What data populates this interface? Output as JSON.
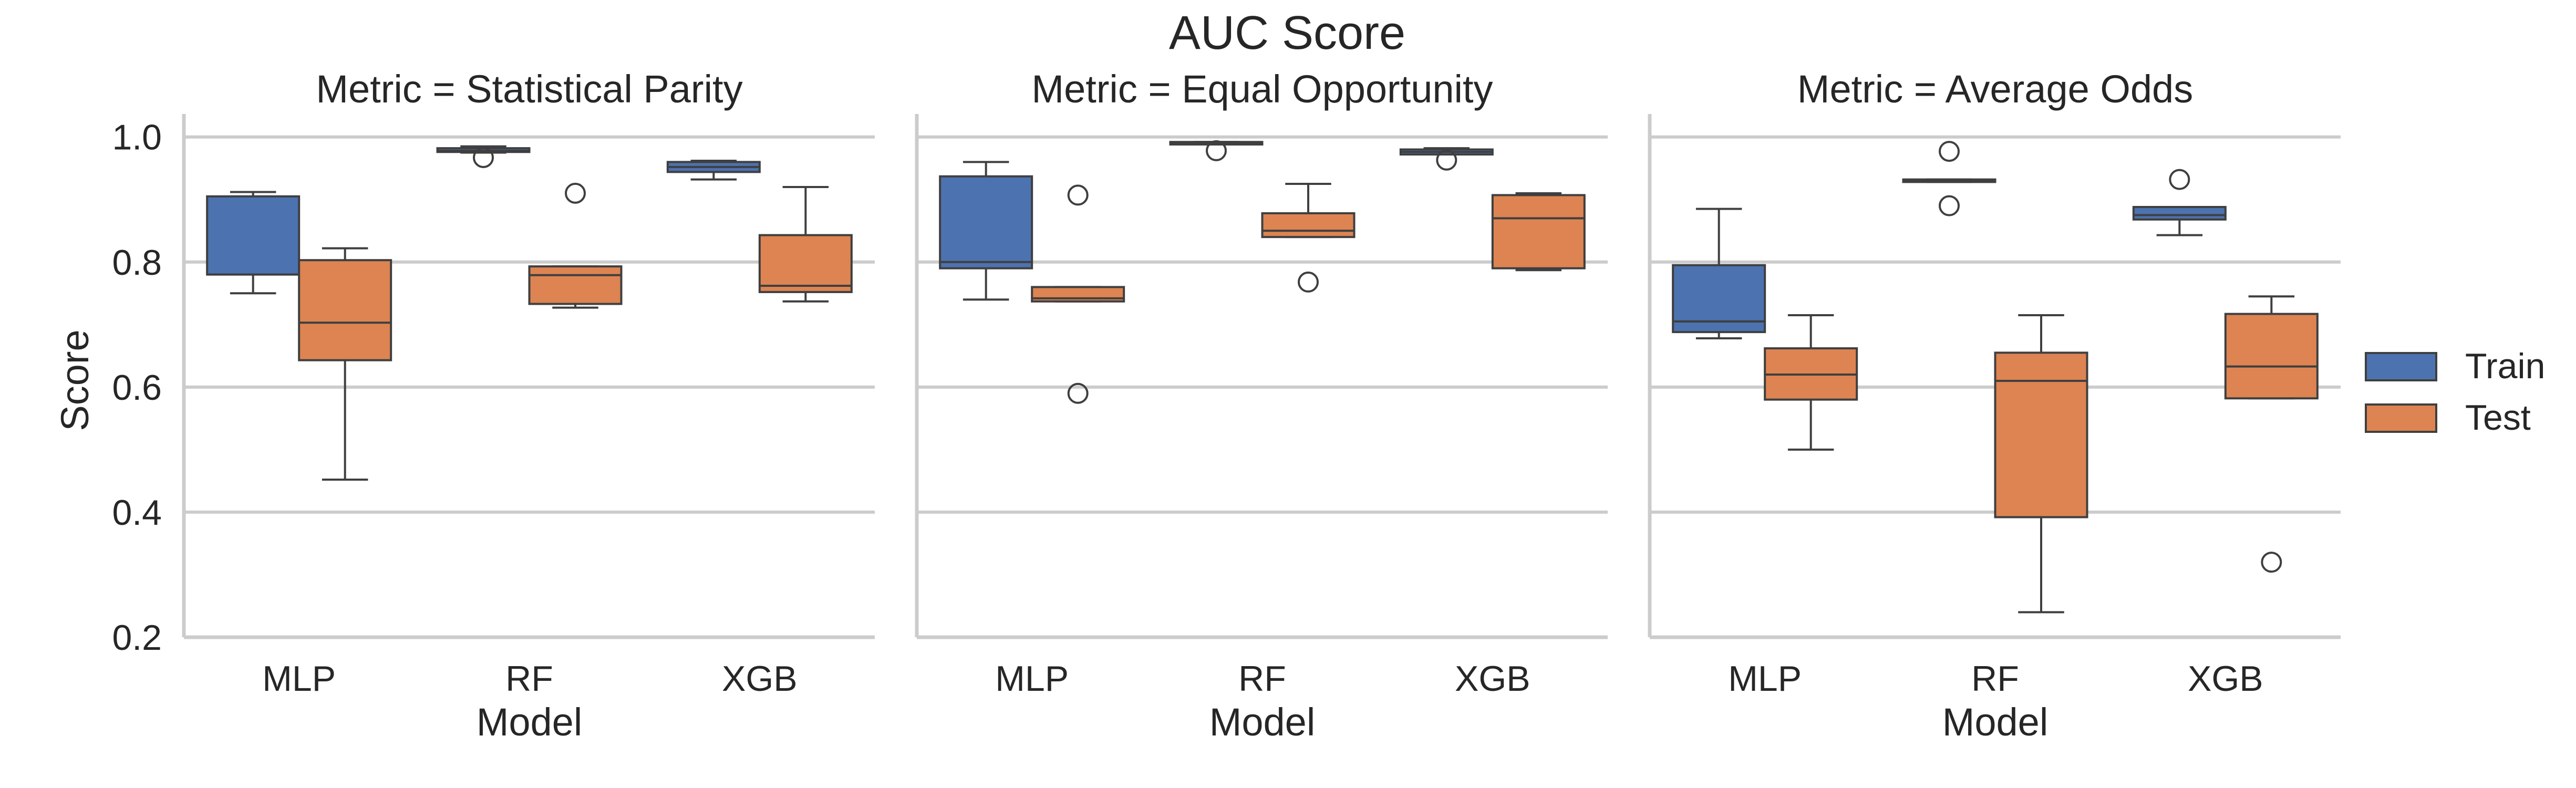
{
  "title": "AUC Score",
  "colors": {
    "train": "#4c72b0",
    "test": "#dd8452",
    "grid": "#cccccc",
    "spine": "#cccccc",
    "text": "#262626",
    "box_edge": "#3f3f3f"
  },
  "legend": {
    "entries": [
      "Train",
      "Test"
    ],
    "placement": "right"
  },
  "chart_data": {
    "type": "box",
    "title": "AUC Score",
    "xlabel": "Model",
    "ylabel": "Score",
    "ylim": [
      0.2,
      1.03
    ],
    "yticks": [
      "1.0",
      "0.8",
      "0.6",
      "0.4",
      "0.2"
    ],
    "categories": [
      "MLP",
      "RF",
      "XGB"
    ],
    "grid": "horizontal",
    "series_names": [
      "Train",
      "Test"
    ],
    "panels": [
      {
        "title": "Metric = Statistical Parity",
        "series": [
          {
            "name": "Train",
            "boxes": [
              {
                "whislo": 0.75,
                "q1": 0.78,
                "med": 0.78,
                "q3": 0.905,
                "whishi": 0.912,
                "fliers": []
              },
              {
                "whislo": 0.975,
                "q1": 0.976,
                "med": 0.978,
                "q3": 0.982,
                "whishi": 0.985,
                "fliers": [
                  0.967
                ]
              },
              {
                "whislo": 0.932,
                "q1": 0.944,
                "med": 0.952,
                "q3": 0.96,
                "whishi": 0.962,
                "fliers": []
              }
            ]
          },
          {
            "name": "Test",
            "boxes": [
              {
                "whislo": 0.452,
                "q1": 0.643,
                "med": 0.703,
                "q3": 0.803,
                "whishi": 0.822,
                "fliers": []
              },
              {
                "whislo": 0.727,
                "q1": 0.733,
                "med": 0.779,
                "q3": 0.793,
                "whishi": 0.793,
                "fliers": [
                  0.91
                ]
              },
              {
                "whislo": 0.737,
                "q1": 0.752,
                "med": 0.762,
                "q3": 0.843,
                "whishi": 0.92,
                "fliers": []
              }
            ]
          }
        ]
      },
      {
        "title": "Metric = Equal Opportunity",
        "series": [
          {
            "name": "Train",
            "boxes": [
              {
                "whislo": 0.74,
                "q1": 0.79,
                "med": 0.8,
                "q3": 0.937,
                "whishi": 0.96,
                "fliers": []
              },
              {
                "whislo": 0.988,
                "q1": 0.988,
                "med": 0.99,
                "q3": 0.992,
                "whishi": 0.992,
                "fliers": [
                  0.978
                ]
              },
              {
                "whislo": 0.972,
                "q1": 0.972,
                "med": 0.976,
                "q3": 0.98,
                "whishi": 0.982,
                "fliers": [
                  0.963
                ]
              }
            ]
          },
          {
            "name": "Test",
            "boxes": [
              {
                "whislo": 0.737,
                "q1": 0.737,
                "med": 0.742,
                "q3": 0.76,
                "whishi": 0.76,
                "fliers": [
                  0.907,
                  0.59
                ]
              },
              {
                "whislo": 0.84,
                "q1": 0.84,
                "med": 0.85,
                "q3": 0.878,
                "whishi": 0.925,
                "fliers": [
                  0.768
                ]
              },
              {
                "whislo": 0.787,
                "q1": 0.79,
                "med": 0.87,
                "q3": 0.907,
                "whishi": 0.91,
                "fliers": []
              }
            ]
          }
        ]
      },
      {
        "title": "Metric = Average Odds",
        "series": [
          {
            "name": "Train",
            "boxes": [
              {
                "whislo": 0.678,
                "q1": 0.688,
                "med": 0.705,
                "q3": 0.795,
                "whishi": 0.885,
                "fliers": []
              },
              {
                "whislo": 0.928,
                "q1": 0.928,
                "med": 0.93,
                "q3": 0.932,
                "whishi": 0.932,
                "fliers": [
                  0.977,
                  0.89
                ]
              },
              {
                "whislo": 0.843,
                "q1": 0.868,
                "med": 0.875,
                "q3": 0.888,
                "whishi": 0.888,
                "fliers": [
                  0.932
                ]
              }
            ]
          },
          {
            "name": "Test",
            "boxes": [
              {
                "whislo": 0.5,
                "q1": 0.58,
                "med": 0.62,
                "q3": 0.662,
                "whishi": 0.715,
                "fliers": []
              },
              {
                "whislo": 0.24,
                "q1": 0.392,
                "med": 0.61,
                "q3": 0.655,
                "whishi": 0.715,
                "fliers": []
              },
              {
                "whislo": 0.582,
                "q1": 0.582,
                "med": 0.633,
                "q3": 0.717,
                "whishi": 0.745,
                "fliers": [
                  0.32
                ]
              }
            ]
          }
        ]
      }
    ]
  }
}
